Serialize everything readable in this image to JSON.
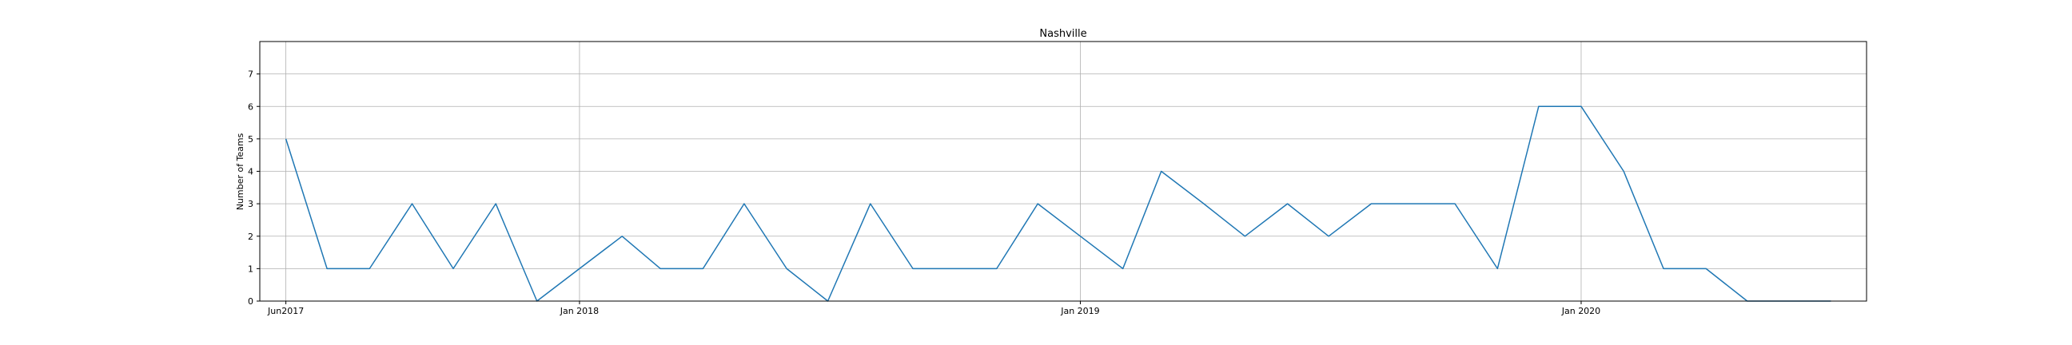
{
  "chart_data": {
    "type": "line",
    "title": "Nashville",
    "xlabel": "",
    "ylabel": "Number of Teams",
    "ylim": [
      0,
      8
    ],
    "yticks": [
      0,
      1,
      2,
      3,
      4,
      5,
      6,
      7
    ],
    "xlim": [
      "2017-05-13",
      "2020-07-27"
    ],
    "xticks": [
      {
        "date": "2017-06-01",
        "label": "Jun2017"
      },
      {
        "date": "2018-01-01",
        "label": "Jan 2018"
      },
      {
        "date": "2019-01-01",
        "label": "Jan 2019"
      },
      {
        "date": "2020-01-01",
        "label": "Jan 2020"
      }
    ],
    "grid": true,
    "line_color": "#1f77b4",
    "series": [
      {
        "x": [
          "2017-06-01",
          "2017-07-01",
          "2017-08-01",
          "2017-09-01",
          "2017-10-01",
          "2017-11-01",
          "2017-12-01",
          "2018-01-01",
          "2018-02-01",
          "2018-03-01",
          "2018-04-01",
          "2018-05-01",
          "2018-06-01",
          "2018-07-01",
          "2018-08-01",
          "2018-09-01",
          "2018-10-01",
          "2018-11-01",
          "2018-12-01",
          "2019-01-01",
          "2019-02-01",
          "2019-03-01",
          "2019-04-01",
          "2019-05-01",
          "2019-06-01",
          "2019-07-01",
          "2019-08-01",
          "2019-09-01",
          "2019-10-01",
          "2019-11-01",
          "2019-12-01",
          "2020-01-01",
          "2020-02-01",
          "2020-03-01",
          "2020-04-01",
          "2020-05-01",
          "2020-06-01",
          "2020-07-01"
        ],
        "values": [
          5,
          1,
          1,
          3,
          1,
          3,
          0,
          1,
          2,
          1,
          1,
          3,
          1,
          0,
          3,
          1,
          1,
          1,
          3,
          2,
          1,
          4,
          3,
          2,
          3,
          2,
          3,
          3,
          3,
          1,
          6,
          6,
          4,
          1,
          1,
          0,
          0,
          0
        ]
      }
    ]
  }
}
